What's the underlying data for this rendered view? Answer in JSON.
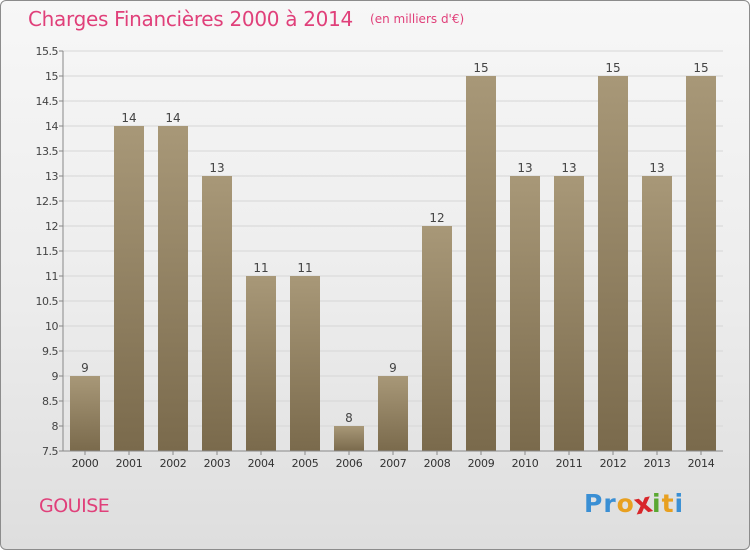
{
  "title": "Charges Financières 2000 à 2014",
  "subtitle": "(en milliers d'€)",
  "town": "GOUISE",
  "logo": {
    "text": "Proxiti",
    "letters": [
      {
        "ch": "P",
        "color": "#3a8fd4"
      },
      {
        "ch": "r",
        "color": "#3a8fd4"
      },
      {
        "ch": "o",
        "color": "#e8a020"
      },
      {
        "ch": "x",
        "color": "#d8262a"
      },
      {
        "ch": "i",
        "color": "#5aa832"
      },
      {
        "ch": "t",
        "color": "#e8a020"
      },
      {
        "ch": "i",
        "color": "#3a8fd4"
      }
    ]
  },
  "colors": {
    "accent": "#e0407a",
    "bar_top": "#a89878",
    "bar_bottom": "#7a6a4c"
  },
  "chart_data": {
    "type": "bar",
    "categories": [
      "2000",
      "2001",
      "2002",
      "2003",
      "2004",
      "2005",
      "2006",
      "2007",
      "2008",
      "2009",
      "2010",
      "2011",
      "2012",
      "2013",
      "2014"
    ],
    "values": [
      9,
      14,
      14,
      13,
      11,
      11,
      8,
      9,
      12,
      15,
      13,
      13,
      15,
      13,
      15
    ],
    "value_labels": [
      "9",
      "14",
      "14",
      "13",
      "11",
      "11",
      "8",
      "9",
      "12",
      "15",
      "13",
      "13",
      "15",
      "13",
      "15"
    ],
    "ylim": [
      7.5,
      15.5
    ],
    "yticks": [
      7.5,
      8,
      8.5,
      9,
      9.5,
      10,
      10.5,
      11,
      11.5,
      12,
      12.5,
      13,
      13.5,
      14,
      14.5,
      15,
      15.5
    ],
    "ytick_labels": [
      "7.5",
      "8",
      "8.5",
      "9",
      "9.5",
      "10",
      "10.5",
      "11",
      "11.5",
      "12",
      "12.5",
      "13",
      "13.5",
      "14",
      "14.5",
      "15",
      "15.5"
    ],
    "grid": true,
    "xlabel": "",
    "ylabel": ""
  }
}
